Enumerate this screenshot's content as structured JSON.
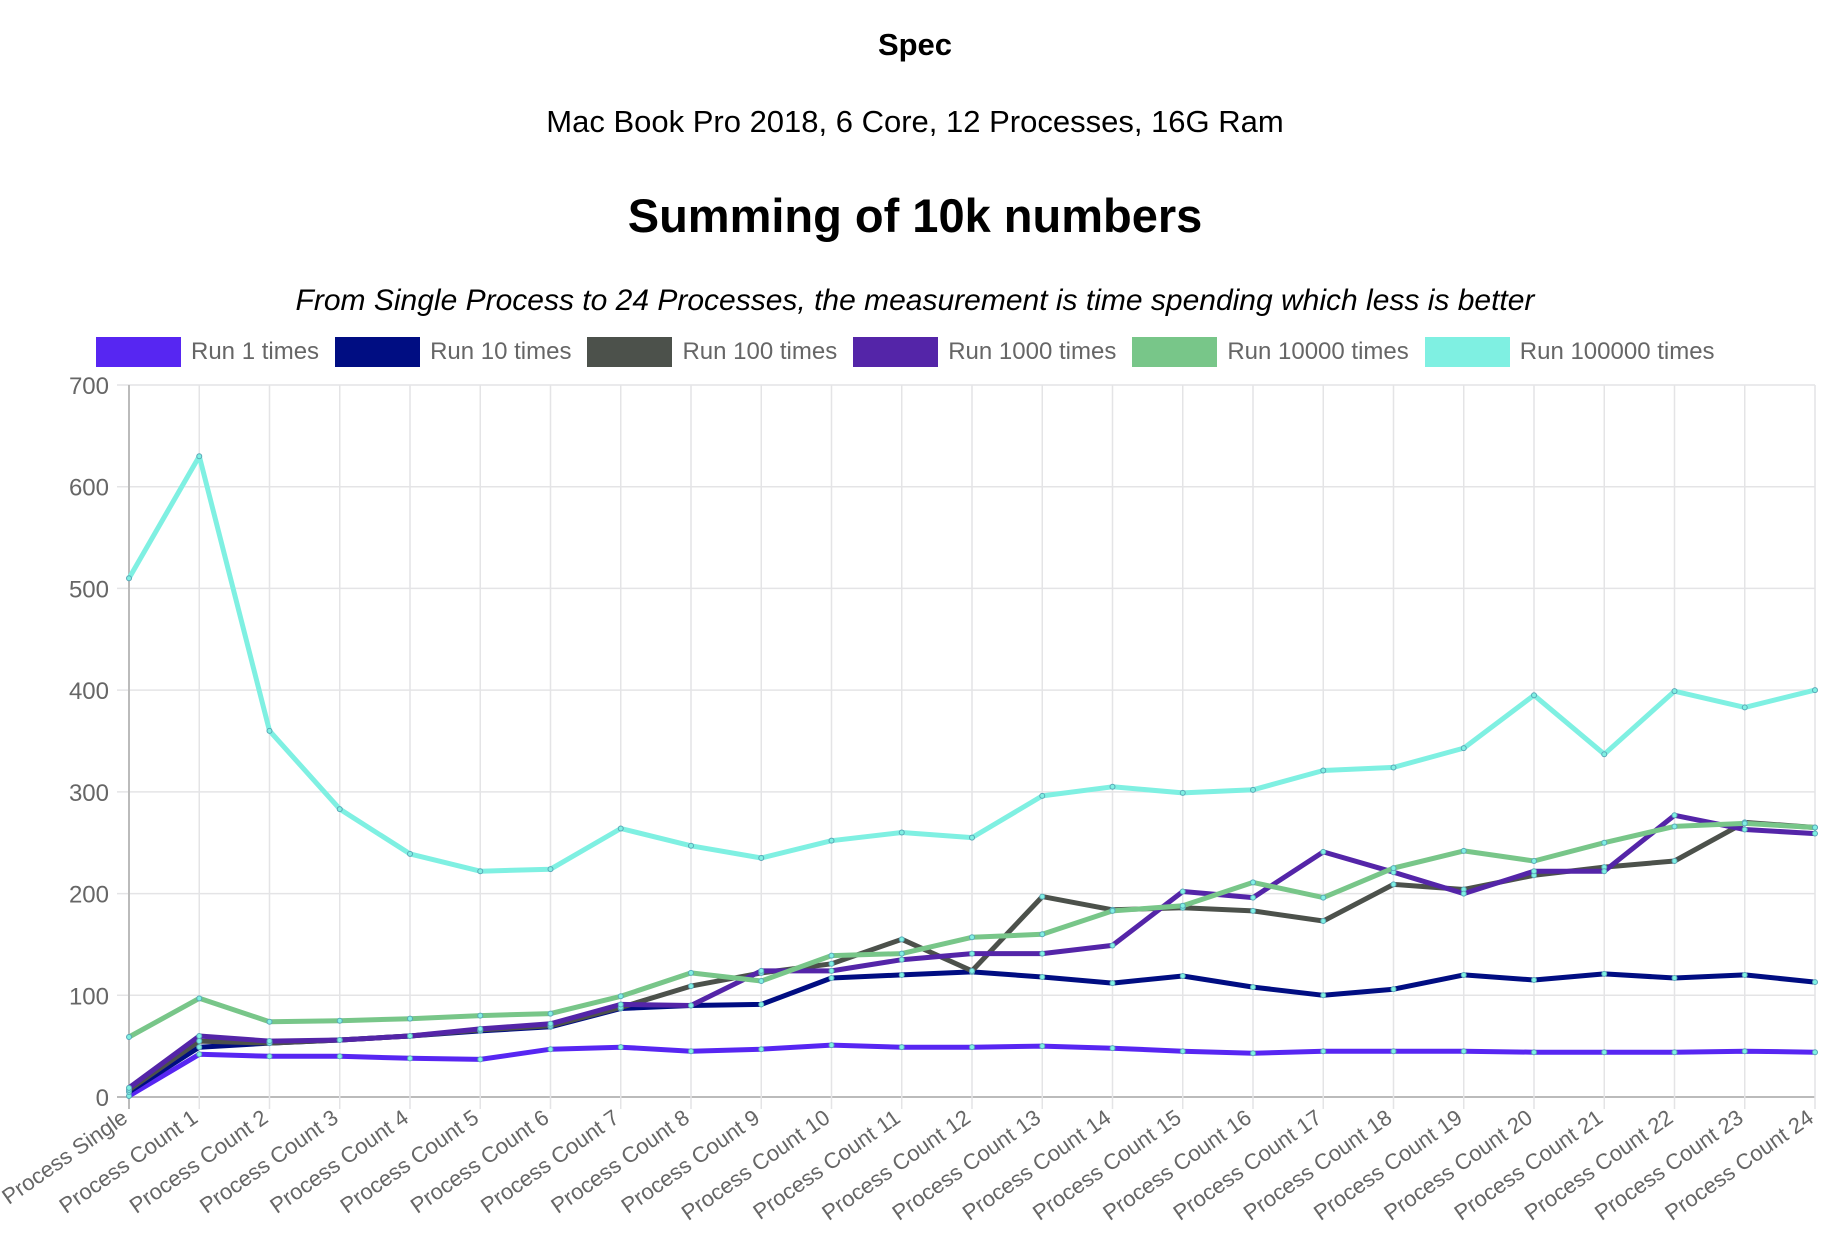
{
  "header": {
    "spec_label": "Spec",
    "spec_detail": "Mac Book Pro 2018, 6 Core, 12 Processes, 16G Ram"
  },
  "chart_data": {
    "type": "line",
    "title": "Summing of 10k numbers",
    "subtitle": "From Single Process to 24 Processes, the measurement is time spending which less is better",
    "xlabel": "",
    "ylabel": "",
    "ylim": [
      0,
      700
    ],
    "yticks": [
      "0",
      "100",
      "200",
      "300",
      "400",
      "500",
      "600",
      "700"
    ],
    "grid": true,
    "legend_position": "top",
    "categories": [
      "Process Single",
      "Process Count 1",
      "Process Count 2",
      "Process Count 3",
      "Process Count 4",
      "Process Count 5",
      "Process Count 6",
      "Process Count 7",
      "Process Count 8",
      "Process Count 9",
      "Process Count 10",
      "Process Count 11",
      "Process Count 12",
      "Process Count 13",
      "Process Count 14",
      "Process Count 15",
      "Process Count 16",
      "Process Count 17",
      "Process Count 18",
      "Process Count 19",
      "Process Count 20",
      "Process Count 21",
      "Process Count 22",
      "Process Count 23",
      "Process Count 24"
    ],
    "series": [
      {
        "name": "Run 1 times",
        "color": "#5726f2",
        "values": [
          1,
          42,
          40,
          40,
          38,
          37,
          47,
          49,
          45,
          47,
          51,
          49,
          49,
          50,
          48,
          45,
          43,
          45,
          45,
          45,
          44,
          44,
          44,
          45,
          44
        ]
      },
      {
        "name": "Run 10 times",
        "color": "#000d82",
        "values": [
          5,
          49,
          53,
          56,
          60,
          65,
          69,
          87,
          90,
          91,
          117,
          120,
          123,
          118,
          112,
          119,
          108,
          100,
          106,
          120,
          115,
          121,
          117,
          120,
          113
        ]
      },
      {
        "name": "Run 100 times",
        "color": "#4c514b",
        "values": [
          7,
          55,
          53,
          56,
          60,
          66,
          70,
          88,
          109,
          122,
          131,
          155,
          124,
          197,
          184,
          186,
          183,
          173,
          209,
          204,
          218,
          226,
          232,
          270,
          265
        ]
      },
      {
        "name": "Run 1000 times",
        "color": "#5425a8",
        "values": [
          9,
          60,
          55,
          56,
          60,
          67,
          72,
          91,
          90,
          124,
          124,
          135,
          141,
          141,
          149,
          202,
          196,
          241,
          221,
          200,
          222,
          222,
          277,
          263,
          259
        ]
      },
      {
        "name": "Run 10000 times",
        "color": "#78c689",
        "values": [
          59,
          97,
          74,
          75,
          77,
          80,
          82,
          99,
          122,
          114,
          139,
          141,
          157,
          160,
          183,
          188,
          211,
          196,
          225,
          242,
          232,
          250,
          266,
          269,
          265
        ]
      },
      {
        "name": "Run 100000 times",
        "color": "#7ff0e2",
        "values": [
          510,
          630,
          360,
          283,
          239,
          222,
          224,
          264,
          247,
          235,
          252,
          260,
          255,
          296,
          305,
          299,
          302,
          321,
          324,
          343,
          395,
          337,
          399,
          383,
          400
        ]
      }
    ]
  }
}
